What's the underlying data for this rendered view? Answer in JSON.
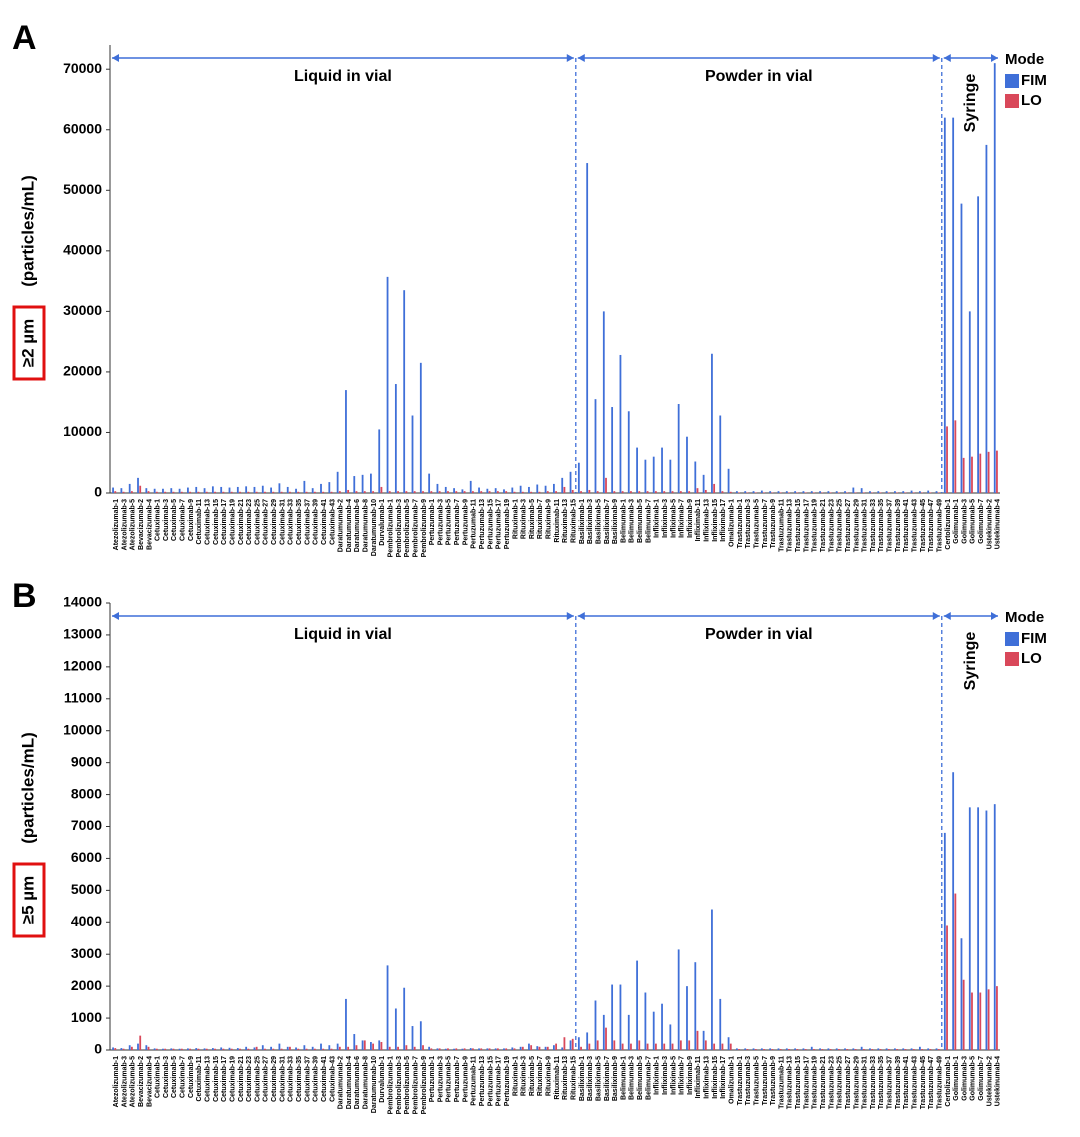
{
  "chart_data": [
    {
      "type": "bar",
      "panel": "A",
      "y_label_highlight": "≥2 µm",
      "y_label": "(particles/mL)",
      "legend_title": "Mode",
      "legend": "right",
      "grid": false,
      "ylim": [
        0,
        74000
      ],
      "yticks": [
        0,
        10000,
        20000,
        30000,
        40000,
        50000,
        60000,
        70000
      ],
      "sections": [
        {
          "label": "Liquid in vial",
          "first": "Atezolizumab-1",
          "last": "Rituximab-15"
        },
        {
          "label": "Powder in vial",
          "first": "Basiliximab-1",
          "last": "Trastuzumab-49"
        },
        {
          "label": "Syringe",
          "first": "Certolizumab-1",
          "last": "Ustekinumab-4"
        }
      ],
      "categories": [
        "Atezolizumab-1",
        "Atezolizumab-3",
        "Atezolizumab-5",
        "Bevacizumab-2",
        "Bevacizumab-4",
        "Cetuximab-1",
        "Cetuximab-3",
        "Cetuximab-5",
        "Cetuximab-7",
        "Cetuximab-9",
        "Cetuximab-11",
        "Cetuximab-13",
        "Cetuximab-15",
        "Cetuximab-17",
        "Cetuximab-19",
        "Cetuximab-21",
        "Cetuximab-23",
        "Cetuximab-25",
        "Cetuximab-27",
        "Cetuximab-29",
        "Cetuximab-31",
        "Cetuximab-33",
        "Cetuximab-35",
        "Cetuximab-37",
        "Cetuximab-39",
        "Cetuximab-41",
        "Cetuximab-43",
        "Daratumumab-2",
        "Daratumumab-4",
        "Daratumumab-6",
        "Daratumumab-8",
        "Daratumumab-10",
        "Durvalumab-1",
        "Pembrolizumab-1",
        "Pembrolizumab-3",
        "Pembrolizumab-5",
        "Pembrolizumab-7",
        "Pembrolizumab-9",
        "Pertuzumab-1",
        "Pertuzumab-3",
        "Pertuzumab-5",
        "Pertuzumab-7",
        "Pertuzumab-9",
        "Pertuzumab-11",
        "Pertuzumab-13",
        "Pertuzumab-15",
        "Pertuzumab-17",
        "Pertuzumab-19",
        "Rituximab-1",
        "Rituximab-3",
        "Rituximab-5",
        "Rituximab-7",
        "Rituximab-9",
        "Rituximab-11",
        "Rituximab-13",
        "Rituximab-15",
        "Basiliximab-1",
        "Basiliximab-3",
        "Basiliximab-5",
        "Basiliximab-7",
        "Basiliximab-9",
        "Belimumab-1",
        "Belimumab-3",
        "Belimumab-5",
        "Belimumab-7",
        "Infliximab-1",
        "Infliximab-3",
        "Infliximab-5",
        "Infliximab-7",
        "Infliximab-9",
        "Infliximab-11",
        "Infliximab-13",
        "Infliximab-15",
        "Infliximab-17",
        "Omalizumab-1",
        "Trastuzumab-1",
        "Trastuzumab-3",
        "Trastuzumab-5",
        "Trastuzumab-7",
        "Trastuzumab-9",
        "Trastuzumab-11",
        "Trastuzumab-13",
        "Trastuzumab-15",
        "Trastuzumab-17",
        "Trastuzumab-19",
        "Trastuzumab-21",
        "Trastuzumab-23",
        "Trastuzumab-25",
        "Trastuzumab-27",
        "Trastuzumab-29",
        "Trastuzumab-31",
        "Trastuzumab-33",
        "Trastuzumab-35",
        "Trastuzumab-37",
        "Trastuzumab-39",
        "Trastuzumab-41",
        "Trastuzumab-43",
        "Trastuzumab-45",
        "Trastuzumab-47",
        "Trastuzumab-49",
        "Certolizumab-1",
        "Golimumab-1",
        "Golimumab-3",
        "Golimumab-5",
        "Golimumab-7",
        "Ustekinumab-2",
        "Ustekinumab-4"
      ],
      "series": [
        {
          "name": "FIM",
          "color": "#3f6fd8",
          "values": [
            900,
            800,
            1500,
            2500,
            800,
            700,
            700,
            800,
            700,
            900,
            1000,
            800,
            1100,
            1000,
            900,
            1000,
            1100,
            1000,
            1200,
            900,
            1600,
            1000,
            700,
            2000,
            800,
            1500,
            1800,
            3500,
            17000,
            2800,
            3000,
            3200,
            10500,
            35700,
            18000,
            33500,
            12800,
            21500,
            3200,
            1500,
            1000,
            800,
            600,
            2000,
            900,
            700,
            800,
            600,
            900,
            1200,
            1000,
            1400,
            1200,
            1500,
            2500,
            3500,
            5000,
            54500,
            15500,
            30000,
            14200,
            22800,
            13500,
            7500,
            5500,
            6000,
            7500,
            5500,
            14700,
            9300,
            5200,
            3000,
            23000,
            12800,
            4000,
            300,
            300,
            300,
            400,
            300,
            300,
            300,
            300,
            300,
            300,
            300,
            300,
            300,
            300,
            900,
            800,
            300,
            300,
            300,
            300,
            300,
            400,
            300,
            400,
            300,
            62000,
            62000,
            47800,
            30000,
            49000,
            57500,
            71000
          ]
        },
        {
          "name": "LO",
          "color": "#d9485a",
          "values": [
            300,
            200,
            300,
            1200,
            300,
            200,
            200,
            200,
            200,
            200,
            200,
            200,
            200,
            200,
            200,
            200,
            200,
            200,
            200,
            200,
            200,
            200,
            200,
            200,
            200,
            200,
            200,
            300,
            500,
            300,
            300,
            300,
            1000,
            300,
            300,
            300,
            300,
            300,
            300,
            300,
            300,
            300,
            300,
            300,
            300,
            300,
            300,
            300,
            200,
            200,
            200,
            200,
            300,
            300,
            1000,
            500,
            300,
            500,
            300,
            2500,
            300,
            300,
            300,
            300,
            300,
            300,
            300,
            300,
            300,
            300,
            800,
            500,
            1500,
            300,
            200,
            100,
            100,
            100,
            100,
            100,
            100,
            100,
            100,
            100,
            100,
            100,
            100,
            100,
            100,
            100,
            100,
            100,
            100,
            100,
            100,
            100,
            100,
            100,
            100,
            100,
            11000,
            12000,
            5800,
            6000,
            6500,
            6800,
            7000
          ]
        }
      ]
    },
    {
      "type": "bar",
      "panel": "B",
      "y_label_highlight": "≥5 µm",
      "y_label": "(particles/mL)",
      "legend_title": "Mode",
      "legend": "right",
      "grid": false,
      "ylim": [
        0,
        14000
      ],
      "yticks": [
        0,
        1000,
        2000,
        3000,
        4000,
        5000,
        6000,
        7000,
        8000,
        9000,
        10000,
        11000,
        12000,
        13000,
        14000
      ],
      "sections": [
        {
          "label": "Liquid in vial",
          "first": "Atezolizumab-1",
          "last": "Rituximab-15"
        },
        {
          "label": "Powder in vial",
          "first": "Basiliximab-1",
          "last": "Trastuzumab-49"
        },
        {
          "label": "Syringe",
          "first": "Certolizumab-1",
          "last": "Ustekinumab-4"
        }
      ],
      "categories": [
        "Atezolizumab-1",
        "Atezolizumab-3",
        "Atezolizumab-5",
        "Bevacizumab-2",
        "Bevacizumab-4",
        "Cetuximab-1",
        "Cetuximab-3",
        "Cetuximab-5",
        "Cetuximab-7",
        "Cetuximab-9",
        "Cetuximab-11",
        "Cetuximab-13",
        "Cetuximab-15",
        "Cetuximab-17",
        "Cetuximab-19",
        "Cetuximab-21",
        "Cetuximab-23",
        "Cetuximab-25",
        "Cetuximab-27",
        "Cetuximab-29",
        "Cetuximab-31",
        "Cetuximab-33",
        "Cetuximab-35",
        "Cetuximab-37",
        "Cetuximab-39",
        "Cetuximab-41",
        "Cetuximab-43",
        "Daratumumab-2",
        "Daratumumab-4",
        "Daratumumab-6",
        "Daratumumab-8",
        "Daratumumab-10",
        "Durvalumab-1",
        "Pembrolizumab-1",
        "Pembrolizumab-3",
        "Pembrolizumab-5",
        "Pembrolizumab-7",
        "Pembrolizumab-9",
        "Pertuzumab-1",
        "Pertuzumab-3",
        "Pertuzumab-5",
        "Pertuzumab-7",
        "Pertuzumab-9",
        "Pertuzumab-11",
        "Pertuzumab-13",
        "Pertuzumab-15",
        "Pertuzumab-17",
        "Pertuzumab-19",
        "Rituximab-1",
        "Rituximab-3",
        "Rituximab-5",
        "Rituximab-7",
        "Rituximab-9",
        "Rituximab-11",
        "Rituximab-13",
        "Rituximab-15",
        "Basiliximab-1",
        "Basiliximab-3",
        "Basiliximab-5",
        "Basiliximab-7",
        "Basiliximab-9",
        "Belimumab-1",
        "Belimumab-3",
        "Belimumab-5",
        "Belimumab-7",
        "Infliximab-1",
        "Infliximab-3",
        "Infliximab-5",
        "Infliximab-7",
        "Infliximab-9",
        "Infliximab-11",
        "Infliximab-13",
        "Infliximab-15",
        "Infliximab-17",
        "Omalizumab-1",
        "Trastuzumab-1",
        "Trastuzumab-3",
        "Trastuzumab-5",
        "Trastuzumab-7",
        "Trastuzumab-9",
        "Trastuzumab-11",
        "Trastuzumab-13",
        "Trastuzumab-15",
        "Trastuzumab-17",
        "Trastuzumab-19",
        "Trastuzumab-21",
        "Trastuzumab-23",
        "Trastuzumab-25",
        "Trastuzumab-27",
        "Trastuzumab-29",
        "Trastuzumab-31",
        "Trastuzumab-33",
        "Trastuzumab-35",
        "Trastuzumab-37",
        "Trastuzumab-39",
        "Trastuzumab-41",
        "Trastuzumab-43",
        "Trastuzumab-45",
        "Trastuzumab-47",
        "Trastuzumab-49",
        "Certolizumab-1",
        "Golimumab-1",
        "Golimumab-3",
        "Golimumab-5",
        "Golimumab-7",
        "Ustekinumab-2",
        "Ustekinumab-4"
      ],
      "series": [
        {
          "name": "FIM",
          "color": "#3f6fd8",
          "values": [
            80,
            60,
            150,
            200,
            150,
            50,
            40,
            50,
            40,
            50,
            60,
            50,
            60,
            80,
            70,
            60,
            100,
            80,
            150,
            100,
            200,
            100,
            80,
            150,
            100,
            200,
            150,
            200,
            1600,
            500,
            300,
            250,
            300,
            2650,
            1300,
            1950,
            750,
            900,
            100,
            50,
            40,
            40,
            40,
            60,
            50,
            50,
            50,
            50,
            80,
            100,
            200,
            120,
            100,
            150,
            80,
            300,
            400,
            550,
            1550,
            1100,
            2050,
            2050,
            1100,
            2800,
            1800,
            1200,
            1450,
            800,
            3150,
            2000,
            2750,
            600,
            4400,
            1600,
            400,
            50,
            50,
            50,
            50,
            50,
            50,
            50,
            50,
            50,
            100,
            50,
            50,
            50,
            50,
            50,
            100,
            50,
            50,
            50,
            50,
            50,
            50,
            100,
            50,
            50,
            6800,
            8700,
            3500,
            7600,
            7600,
            7500,
            7700
          ]
        },
        {
          "name": "LO",
          "color": "#d9485a",
          "values": [
            60,
            40,
            100,
            450,
            100,
            40,
            40,
            40,
            40,
            40,
            40,
            40,
            40,
            40,
            40,
            40,
            40,
            100,
            40,
            40,
            40,
            100,
            40,
            40,
            40,
            40,
            40,
            100,
            100,
            150,
            300,
            200,
            250,
            100,
            100,
            150,
            100,
            150,
            50,
            50,
            50,
            50,
            50,
            50,
            50,
            50,
            50,
            50,
            50,
            100,
            150,
            100,
            100,
            200,
            400,
            350,
            100,
            200,
            300,
            700,
            300,
            200,
            200,
            300,
            200,
            200,
            200,
            200,
            300,
            300,
            600,
            300,
            200,
            200,
            200,
            30,
            30,
            30,
            30,
            30,
            30,
            30,
            30,
            30,
            30,
            30,
            30,
            30,
            30,
            30,
            30,
            30,
            30,
            30,
            30,
            30,
            30,
            30,
            30,
            30,
            3900,
            4900,
            2200,
            1800,
            1800,
            1900,
            2000
          ]
        }
      ]
    }
  ]
}
